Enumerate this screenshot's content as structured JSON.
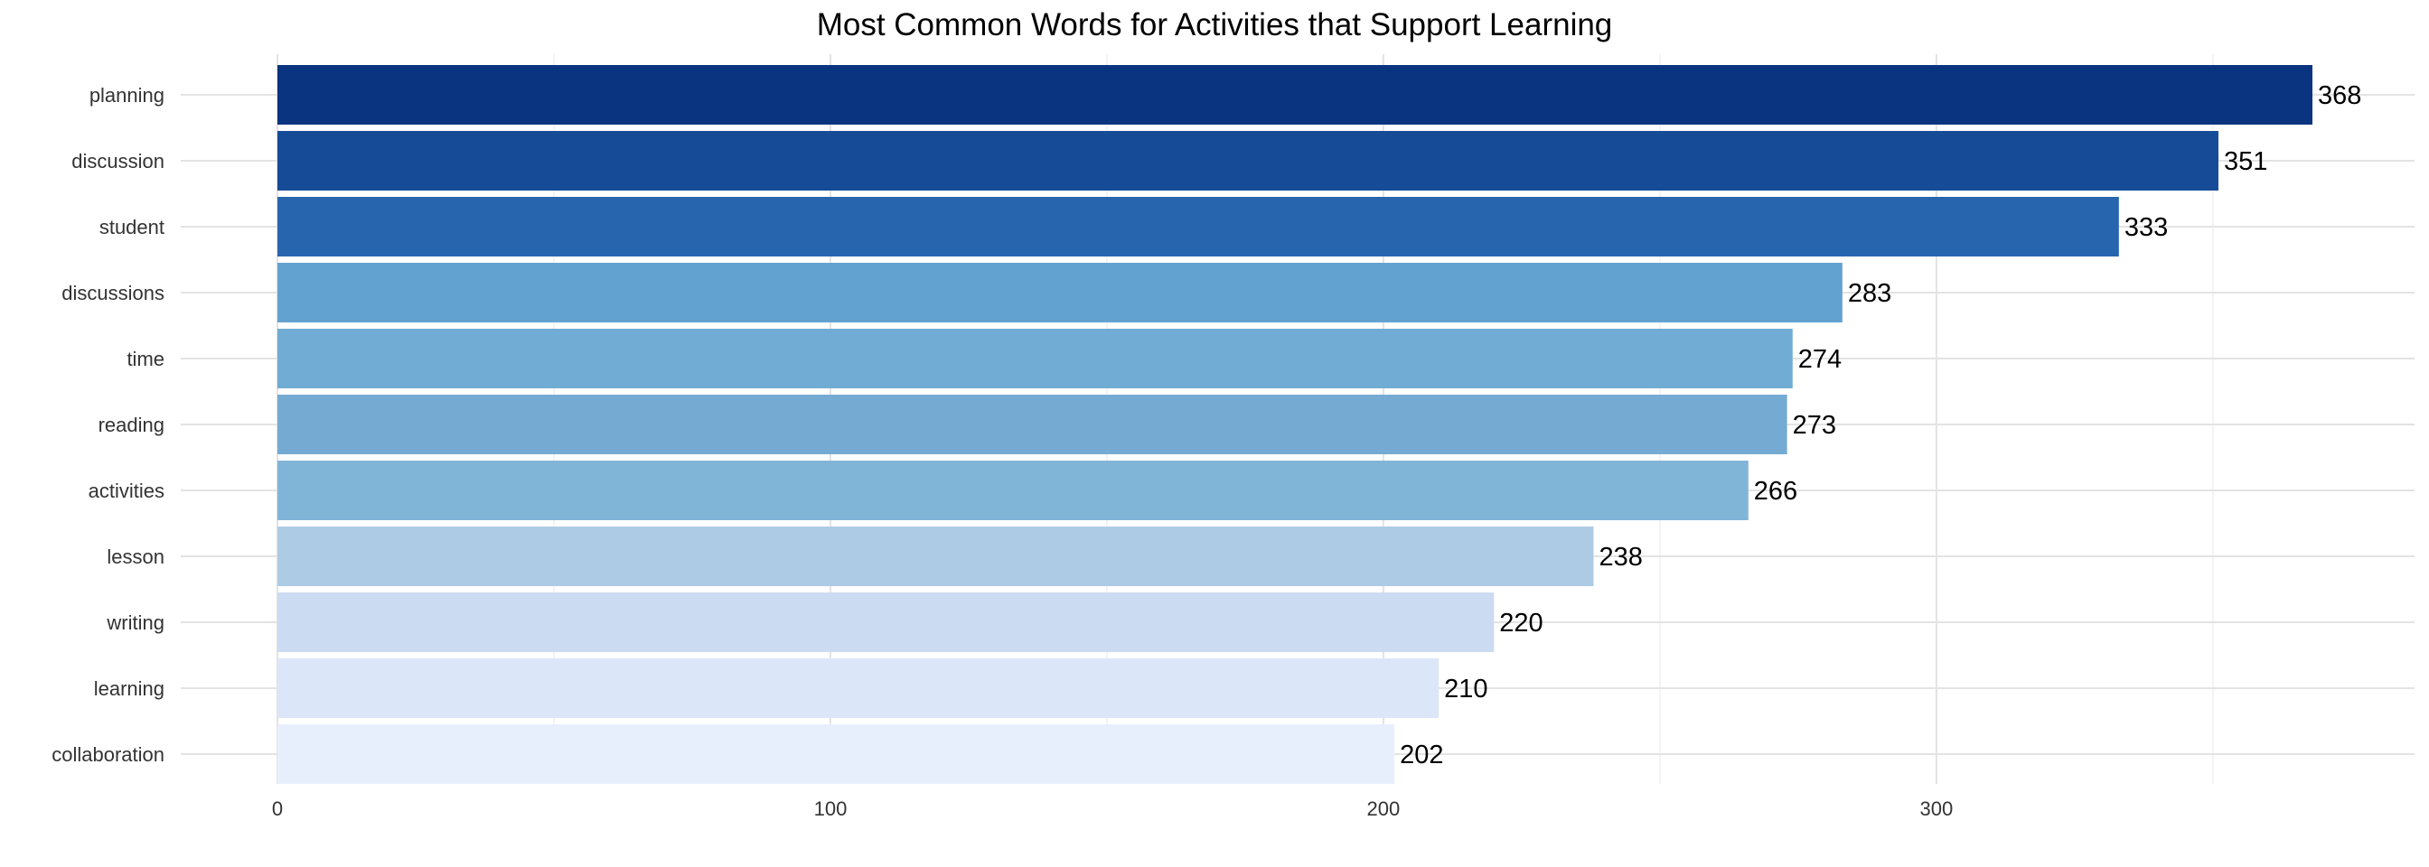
{
  "chart_data": {
    "type": "bar",
    "orientation": "horizontal",
    "title": "Most Common Words for Activities that Support Learning",
    "xlabel": "",
    "ylabel": "",
    "categories": [
      "planning",
      "discussion",
      "student",
      "discussions",
      "time",
      "reading",
      "activities",
      "lesson",
      "writing",
      "learning",
      "collaboration"
    ],
    "values": [
      368,
      351,
      333,
      283,
      274,
      273,
      266,
      238,
      220,
      210,
      202
    ],
    "colors": [
      "#0b3480",
      "#164c97",
      "#2766ae",
      "#61a2d0",
      "#70acd3",
      "#75abd3",
      "#81b5d8",
      "#aecbe5",
      "#cbdbf1",
      "#dbe6f8",
      "#e8effc"
    ],
    "xlim": [
      0,
      386
    ],
    "x_ticks": [
      0,
      100,
      200,
      300
    ],
    "x_tick_labels": [
      "0",
      "100",
      "200",
      "300"
    ],
    "x_minor_ticks": [
      50,
      150,
      250,
      350
    ],
    "grid": true,
    "legend": "none"
  }
}
